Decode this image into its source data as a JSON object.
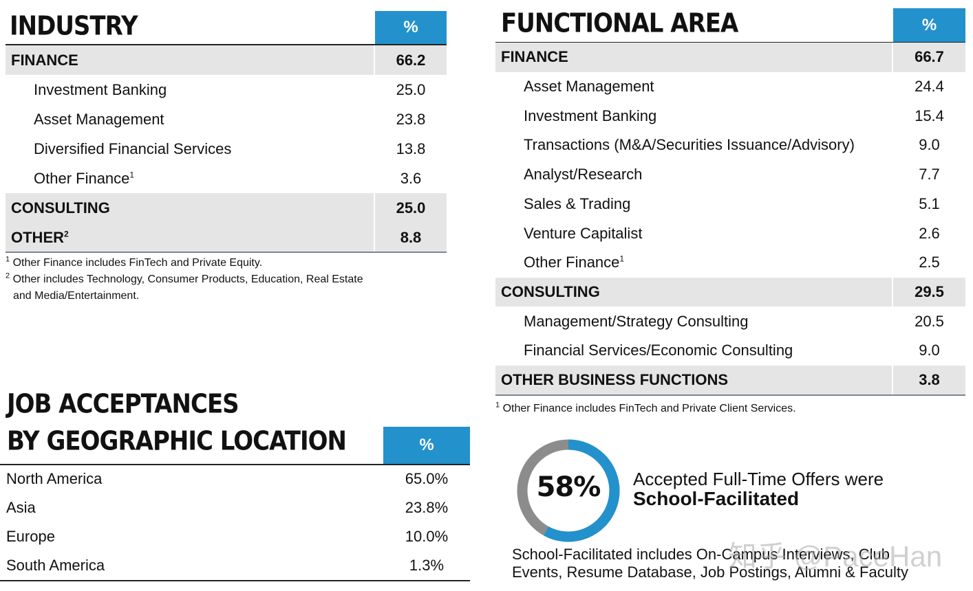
{
  "industry": {
    "title": "INDUSTRY",
    "pct_header": "%",
    "rows": [
      {
        "label": "FINANCE",
        "value": "66.2",
        "type": "cat"
      },
      {
        "label": "Investment Banking",
        "value": "25.0",
        "type": "sub"
      },
      {
        "label": "Asset Management",
        "value": "23.8",
        "type": "sub"
      },
      {
        "label": "Diversified Financial Services",
        "value": "13.8",
        "type": "sub"
      },
      {
        "label": "Other Finance",
        "sup": "1",
        "value": "3.6",
        "type": "sub"
      },
      {
        "label": "CONSULTING",
        "value": "25.0",
        "type": "cat"
      },
      {
        "label": "OTHER",
        "sup": "2",
        "value": "8.8",
        "type": "cat"
      }
    ],
    "footnotes": [
      {
        "mark": "1",
        "text": "Other Finance includes FinTech and Private Equity."
      },
      {
        "mark": "2",
        "text": "Other includes Technology, Consumer Products, Education, Real Estate"
      },
      {
        "mark": "",
        "text": "and Media/Entertainment."
      }
    ]
  },
  "functional_area": {
    "title": "FUNCTIONAL AREA",
    "pct_header": "%",
    "rows": [
      {
        "label": "FINANCE",
        "value": "66.7",
        "type": "cat"
      },
      {
        "label": "Asset Management",
        "value": "24.4",
        "type": "sub"
      },
      {
        "label": "Investment Banking",
        "value": "15.4",
        "type": "sub"
      },
      {
        "label": "Transactions (M&A/Securities Issuance/Advisory)",
        "value": "9.0",
        "type": "sub"
      },
      {
        "label": "Analyst/Research",
        "value": "7.7",
        "type": "sub"
      },
      {
        "label": "Sales & Trading",
        "value": "5.1",
        "type": "sub"
      },
      {
        "label": "Venture Capitalist",
        "value": "2.6",
        "type": "sub"
      },
      {
        "label": "Other Finance",
        "sup": "1",
        "value": "2.5",
        "type": "sub"
      },
      {
        "label": "CONSULTING",
        "value": "29.5",
        "type": "cat"
      },
      {
        "label": "Management/Strategy Consulting",
        "value": "20.5",
        "type": "sub"
      },
      {
        "label": "Financial Services/Economic Consulting",
        "value": "9.0",
        "type": "sub"
      },
      {
        "label": "OTHER BUSINESS FUNCTIONS",
        "value": "3.8",
        "type": "cat"
      }
    ],
    "footnote": {
      "mark": "1",
      "text": "Other Finance includes FinTech and Private Client Services."
    }
  },
  "geography": {
    "title_line1": "JOB ACCEPTANCES",
    "title_line2": "BY GEOGRAPHIC LOCATION",
    "pct_header": "%",
    "rows": [
      {
        "label": "North America",
        "value": "65.0%"
      },
      {
        "label": "Asia",
        "value": "23.8%"
      },
      {
        "label": "Europe",
        "value": "10.0%"
      },
      {
        "label": "South America",
        "value": "1.3%"
      }
    ]
  },
  "school_facilitated": {
    "percent_label": "58%",
    "percent_value": 0.58,
    "colors": {
      "filled": "#2391cc",
      "remainder": "#8c8c8c"
    },
    "line1": "Accepted Full-Time Offers were",
    "line2": "School-Facilitated",
    "note_line1": "School-Facilitated includes On-Campus Interviews, Club",
    "note_line2": "Events, Resume Database, Job Postings, Alumni & Faculty"
  },
  "watermark": "知乎 @PaceHan",
  "accent_color": "#2391cc"
}
